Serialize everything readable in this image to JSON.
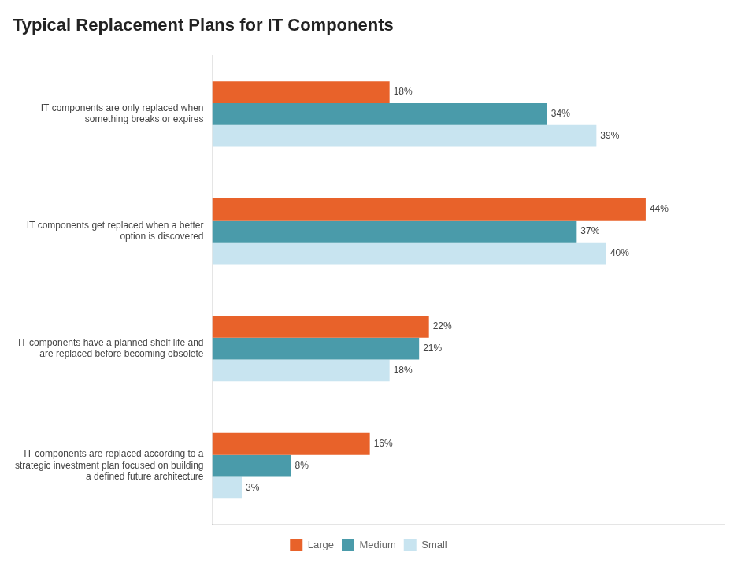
{
  "chart_data": {
    "type": "bar",
    "orientation": "horizontal",
    "title": "Typical Replacement Plans for IT Components",
    "categories": [
      "IT components are replaced according to a\nstrategic investment plan focused on building\na defined future architecture",
      "IT components have a planned shelf life and\nare replaced before becoming obsolete",
      "IT components get replaced when a better\noption is discovered",
      "IT components are only replaced when\nsomething breaks or expires"
    ],
    "series": [
      {
        "name": "Large",
        "color": "#E8622A",
        "values": [
          16,
          22,
          44,
          18
        ],
        "value_labels": [
          "16%",
          "22%",
          "44%",
          "18%"
        ]
      },
      {
        "name": "Medium",
        "color": "#4A9BAA",
        "values": [
          8,
          21,
          37,
          34
        ],
        "value_labels": [
          "8%",
          "21%",
          "37%",
          "34%"
        ]
      },
      {
        "name": "Small",
        "color": "#C8E4F0",
        "values": [
          3,
          18,
          40,
          39
        ],
        "value_labels": [
          "3%",
          "18%",
          "40%",
          "39%"
        ]
      }
    ],
    "xlim": [
      0,
      52
    ],
    "grid": false,
    "legend": "bottom",
    "data_labels": true,
    "tick_labels": "y"
  }
}
